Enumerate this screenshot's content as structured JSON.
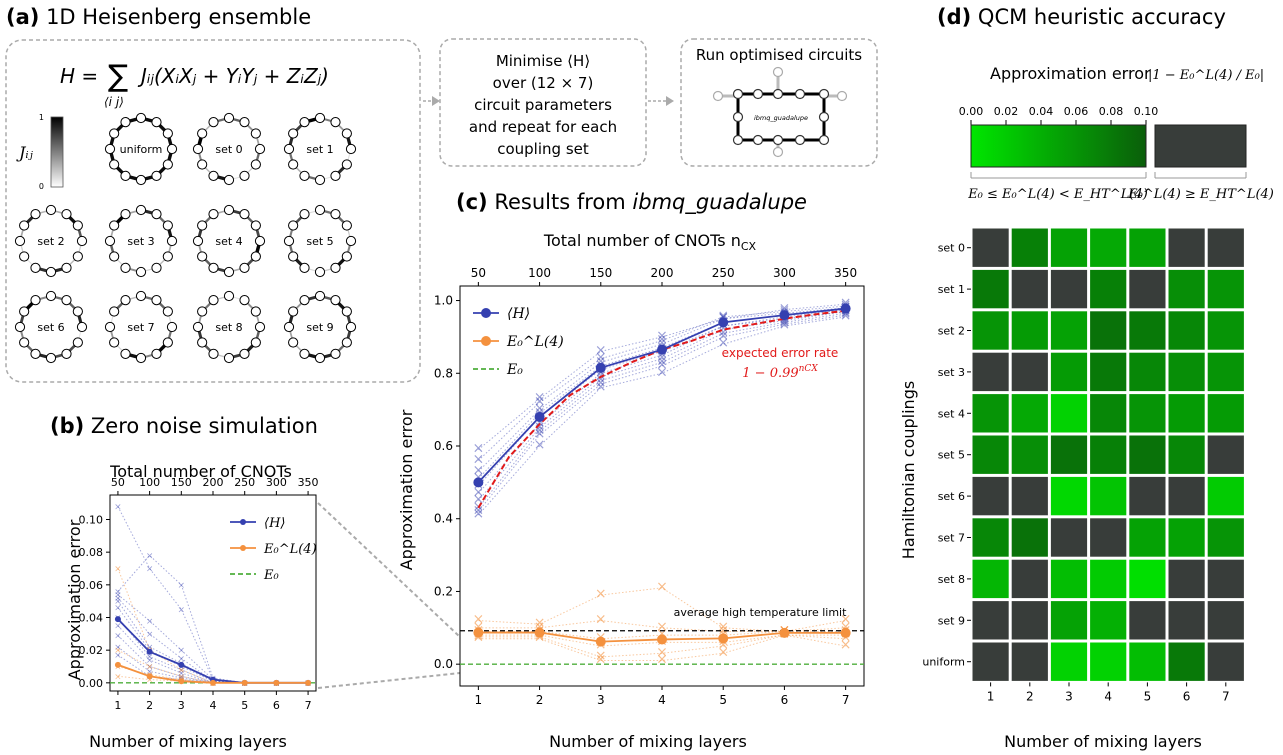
{
  "panel_a": {
    "title_bold": "(a)",
    "title": "1D Heisenberg ensemble",
    "hamiltonian_lhs": "H =",
    "hamiltonian_sum": "∑",
    "hamiltonian_sub": "⟨i j⟩",
    "hamiltonian_rhs": "Jᵢⱼ(XᵢXⱼ + YᵢYⱼ + ZᵢZⱼ)",
    "colorbar_label": "Jᵢⱼ",
    "colorbar_max": "1",
    "colorbar_min": "0",
    "rings": [
      "uniform",
      "set 0",
      "set 1",
      "set 2",
      "set 3",
      "set 4",
      "set 5",
      "set 6",
      "set 7",
      "set 8",
      "set 9"
    ],
    "step1_lines": [
      "Minimise ⟨H⟩",
      "over (12 × 7)",
      "circuit parameters",
      "and repeat for each",
      "coupling set"
    ],
    "step2_title": "Run optimised circuits",
    "device_label": "ibmq_guadalupe"
  },
  "panel_b": {
    "title_bold": "(b)",
    "title": "Zero noise simulation",
    "top_axis_title": "Total number of CNOTs",
    "top_ticks": [
      "50",
      "100",
      "150",
      "200",
      "250",
      "300",
      "350"
    ],
    "xlabel": "Number of mixing layers",
    "ylabel": "Approximation error",
    "x_ticks": [
      "1",
      "2",
      "3",
      "4",
      "5",
      "6",
      "7"
    ],
    "y_ticks": [
      "0.00",
      "0.02",
      "0.04",
      "0.06",
      "0.08",
      "0.10"
    ],
    "legend": [
      "⟨H⟩",
      "E₀^L(4)",
      "E₀"
    ]
  },
  "panel_c": {
    "title_bold": "(c)",
    "title": "Results from",
    "title_device": "ibmq_guadalupe",
    "top_axis_title": "Total number of CNOTs n",
    "top_axis_sub": "CX",
    "top_ticks": [
      "50",
      "100",
      "150",
      "200",
      "250",
      "300",
      "350"
    ],
    "xlabel": "Number of mixing layers",
    "ylabel": "Approximation error",
    "x_ticks": [
      "1",
      "2",
      "3",
      "4",
      "5",
      "6",
      "7"
    ],
    "y_ticks": [
      "0.0",
      "0.2",
      "0.4",
      "0.6",
      "0.8",
      "1.0"
    ],
    "legend": [
      "⟨H⟩",
      "E₀^L(4)",
      "E₀"
    ],
    "annotation_expected": "expected error rate",
    "annotation_formula": "1 − 0.99",
    "annotation_formula_exp": "nCX",
    "annotation_ht": "average high temperature limit"
  },
  "panel_d": {
    "title_bold": "(d)",
    "title": "QCM heuristic accuracy",
    "cb_title": "Approximation error",
    "cb_formula": "|1 − E₀^L(4) / E₀|",
    "cb_ticks": [
      "0.00",
      "0.02",
      "0.04",
      "0.06",
      "0.08",
      "0.10"
    ],
    "cb_label_green": "E₀ ≤ E₀^L(4) < E_HT^L(4)",
    "cb_label_grey": "E₀^L(4) ≥ E_HT^L(4)",
    "ylabel": "Hamiltonian couplings",
    "xlabel": "Number of mixing layers",
    "x_ticks": [
      "1",
      "2",
      "3",
      "4",
      "5",
      "6",
      "7"
    ],
    "rows": [
      "set 0",
      "set 1",
      "set 2",
      "set 3",
      "set 4",
      "set 5",
      "set 6",
      "set 7",
      "set 8",
      "set 9",
      "uniform"
    ]
  },
  "colors": {
    "blue": "#3540b0",
    "orange": "#f4913e",
    "green_dashed": "#4fae3c",
    "red_dashed": "#e11a1a",
    "grey_cell": "#383d3a",
    "green_light": "#00e600",
    "green_dark": "#0a5e0a"
  },
  "chart_data": [
    {
      "type": "line",
      "panel": "b",
      "title": "Zero noise simulation",
      "xlabel": "Number of mixing layers",
      "ylabel": "Approximation error",
      "x": [
        1,
        2,
        3,
        4,
        5,
        6,
        7
      ],
      "top_axis": {
        "title": "Total number of CNOTs",
        "x": [
          50,
          100,
          150,
          200,
          250,
          300,
          350
        ]
      },
      "xlim": [
        0.75,
        7.25
      ],
      "ylim": [
        -0.005,
        0.115
      ],
      "grid": false,
      "legend_position": "top-right",
      "series": [
        {
          "name": "⟨H⟩",
          "values": [
            0.039,
            0.019,
            0.011,
            0.002,
            0.0,
            0.0,
            0.0
          ]
        },
        {
          "name": "E₀^L(4)",
          "values": [
            0.011,
            0.004,
            0.001,
            0.0,
            0.0,
            0.0,
            0.0
          ]
        },
        {
          "name": "E₀",
          "values": [
            0.0,
            0.0,
            0.0,
            0.0,
            0.0,
            0.0,
            0.0
          ]
        }
      ],
      "individual_H": [
        [
          0.108,
          0.07,
          0.045,
          0.002,
          0.0,
          0.0,
          0.0
        ],
        [
          0.056,
          0.078,
          0.06,
          0.003,
          0.0,
          0.0,
          0.0
        ],
        [
          0.054,
          0.038,
          0.02,
          0.002,
          0.0,
          0.0,
          0.0
        ],
        [
          0.052,
          0.03,
          0.015,
          0.001,
          0.0,
          0.0,
          0.0
        ],
        [
          0.05,
          0.022,
          0.012,
          0.001,
          0.0,
          0.0,
          0.0
        ],
        [
          0.046,
          0.02,
          0.01,
          0.001,
          0.0,
          0.0,
          0.0
        ],
        [
          0.04,
          0.016,
          0.008,
          0.0,
          0.0,
          0.0,
          0.0
        ],
        [
          0.035,
          0.014,
          0.006,
          0.0,
          0.0,
          0.0,
          0.0
        ],
        [
          0.029,
          0.01,
          0.004,
          0.0,
          0.0,
          0.0,
          0.0
        ],
        [
          0.022,
          0.007,
          0.003,
          0.0,
          0.0,
          0.0,
          0.0
        ],
        [
          0.017,
          0.004,
          0.002,
          0.0,
          0.0,
          0.0,
          0.0
        ]
      ],
      "individual_L4": [
        [
          0.07,
          0.02,
          0.008,
          0.0,
          0.0,
          0.0,
          0.0
        ],
        [
          0.02,
          0.01,
          0.004,
          0.0,
          0.0,
          0.0,
          0.0
        ],
        [
          0.01,
          0.005,
          0.002,
          0.0,
          0.0,
          0.0,
          0.0
        ],
        [
          0.004,
          0.002,
          0.001,
          0.0,
          0.0,
          0.0,
          0.0
        ]
      ]
    },
    {
      "type": "line",
      "panel": "c",
      "title": "Results from ibmq_guadalupe",
      "xlabel": "Number of mixing layers",
      "ylabel": "Approximation error",
      "x": [
        1,
        2,
        3,
        4,
        5,
        6,
        7
      ],
      "top_axis": {
        "title": "Total number of CNOTs nCX",
        "x": [
          50,
          100,
          150,
          200,
          250,
          300,
          350
        ]
      },
      "xlim": [
        0.7,
        7.3
      ],
      "ylim": [
        -0.06,
        1.04
      ],
      "grid": false,
      "legend_position": "top-left",
      "series": [
        {
          "name": "⟨H⟩",
          "values": [
            0.5,
            0.68,
            0.815,
            0.865,
            0.94,
            0.96,
            0.978
          ]
        },
        {
          "name": "E₀^L(4)",
          "values": [
            0.087,
            0.087,
            0.062,
            0.068,
            0.071,
            0.086,
            0.086
          ]
        },
        {
          "name": "E₀",
          "values": [
            0.0,
            0.0,
            0.0,
            0.0,
            0.0,
            0.0,
            0.0
          ]
        }
      ],
      "expected_error_rate": {
        "label": "expected error rate",
        "x": [
          1,
          1.5,
          2,
          2.5,
          3,
          3.5,
          4,
          4.5,
          5,
          5.5,
          6,
          6.5,
          7
        ],
        "values": [
          0.43,
          0.57,
          0.66,
          0.74,
          0.79,
          0.83,
          0.865,
          0.89,
          0.92,
          0.935,
          0.95,
          0.962,
          0.972
        ]
      },
      "high_temperature_limit": 0.092,
      "individual_H": [
        [
          0.59,
          0.73,
          0.86,
          0.9,
          0.95,
          0.975,
          0.99
        ],
        [
          0.56,
          0.72,
          0.84,
          0.89,
          0.955,
          0.97,
          0.985
        ],
        [
          0.53,
          0.7,
          0.83,
          0.88,
          0.95,
          0.965,
          0.98
        ],
        [
          0.51,
          0.69,
          0.82,
          0.87,
          0.94,
          0.96,
          0.98
        ],
        [
          0.49,
          0.68,
          0.81,
          0.86,
          0.93,
          0.955,
          0.975
        ],
        [
          0.47,
          0.66,
          0.8,
          0.85,
          0.93,
          0.95,
          0.97
        ],
        [
          0.45,
          0.65,
          0.79,
          0.84,
          0.92,
          0.945,
          0.97
        ],
        [
          0.43,
          0.64,
          0.78,
          0.83,
          0.91,
          0.94,
          0.965
        ],
        [
          0.42,
          0.63,
          0.77,
          0.82,
          0.9,
          0.935,
          0.96
        ],
        [
          0.41,
          0.6,
          0.76,
          0.8,
          0.88,
          0.93,
          0.955
        ]
      ],
      "individual_L4": [
        [
          0.12,
          0.11,
          0.19,
          0.21,
          0.1,
          0.09,
          0.12
        ],
        [
          0.1,
          0.1,
          0.12,
          0.1,
          0.09,
          0.09,
          0.1
        ],
        [
          0.09,
          0.09,
          0.07,
          0.08,
          0.08,
          0.09,
          0.09
        ],
        [
          0.08,
          0.08,
          0.05,
          0.06,
          0.06,
          0.08,
          0.08
        ],
        [
          0.075,
          0.075,
          0.02,
          0.03,
          0.05,
          0.08,
          0.07
        ],
        [
          0.07,
          0.07,
          0.01,
          0.01,
          0.03,
          0.08,
          0.05
        ]
      ]
    },
    {
      "type": "heatmap",
      "panel": "d",
      "title": "QCM heuristic accuracy",
      "xlabel": "Number of mixing layers",
      "ylabel": "Hamiltonian couplings",
      "columns": [
        1,
        2,
        3,
        4,
        5,
        6,
        7
      ],
      "rows": [
        "set 0",
        "set 1",
        "set 2",
        "set 3",
        "set 4",
        "set 5",
        "set 6",
        "set 7",
        "set 8",
        "set 9",
        "uniform"
      ],
      "colorbar_range": [
        0.0,
        0.1
      ],
      "note": "null = grey cell (E0^L(4) ≥ E_HT^L(4))",
      "values": [
        [
          null,
          0.075,
          0.05,
          0.045,
          0.05,
          null,
          null
        ],
        [
          0.08,
          null,
          null,
          0.075,
          null,
          0.065,
          0.06
        ],
        [
          0.06,
          0.055,
          0.05,
          0.085,
          0.08,
          0.07,
          0.06
        ],
        [
          null,
          null,
          0.055,
          0.08,
          0.07,
          0.065,
          0.06
        ],
        [
          0.06,
          0.045,
          0.015,
          0.07,
          0.06,
          0.055,
          0.055
        ],
        [
          0.07,
          0.065,
          0.085,
          0.075,
          0.085,
          0.07,
          null
        ],
        [
          null,
          null,
          0.01,
          0.025,
          null,
          null,
          0.02
        ],
        [
          0.07,
          0.085,
          null,
          null,
          0.05,
          0.05,
          0.06
        ],
        [
          0.035,
          null,
          0.03,
          0.02,
          0.005,
          null,
          null
        ],
        [
          null,
          null,
          0.05,
          0.04,
          null,
          null,
          null
        ],
        [
          null,
          null,
          0.015,
          0.015,
          0.03,
          0.08,
          null
        ]
      ]
    }
  ]
}
